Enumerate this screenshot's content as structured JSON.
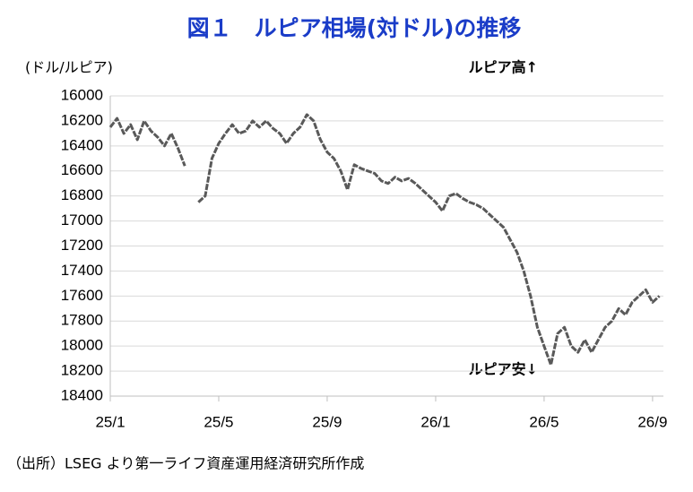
{
  "chart_data": {
    "type": "line",
    "title": "図１　ルピア相場(対ドル)の推移",
    "y_label": "(ドル/ルピア)",
    "annotations": [
      "ルピア高↑",
      "ルピア安↓"
    ],
    "source": "（出所）LSEG より第一ライフ資産運用経済研究所作成",
    "x": [
      0,
      0.25,
      0.5,
      0.75,
      1,
      1.25,
      1.5,
      1.75,
      2,
      2.25,
      2.5,
      2.75,
      3,
      3.25,
      3.5,
      3.75,
      4,
      4.25,
      4.5,
      4.75,
      5,
      5.25,
      5.5,
      5.75,
      6,
      6.25,
      6.5,
      6.75,
      7,
      7.25,
      7.5,
      7.75,
      8,
      8.25,
      8.5,
      8.75,
      9,
      9.25,
      9.5,
      9.75,
      10,
      10.25,
      10.5,
      10.75,
      11,
      11.25,
      11.5,
      11.75,
      12,
      12.25,
      12.5,
      12.75,
      13,
      13.25,
      13.5,
      13.75,
      14,
      14.25,
      14.5,
      14.75,
      15,
      15.25,
      15.5,
      15.75,
      16,
      16.25,
      16.5,
      16.75,
      17,
      17.25,
      17.5,
      17.75,
      18,
      18.25,
      18.5,
      18.75,
      19,
      19.25,
      19.5,
      19.75,
      20,
      20.25
    ],
    "series": [
      {
        "name": "ルピア相場",
        "color": "#595959",
        "values": [
          16250,
          16180,
          16300,
          16230,
          16350,
          16200,
          16280,
          16330,
          16400,
          16300,
          16420,
          16560,
          null,
          16850,
          16800,
          16500,
          16380,
          16300,
          16230,
          16300,
          16280,
          16200,
          16250,
          16200,
          16260,
          16300,
          16380,
          16300,
          16250,
          16150,
          16200,
          16350,
          16450,
          16500,
          16600,
          16750,
          16550,
          16580,
          16600,
          16620,
          16680,
          16700,
          16650,
          16680,
          16660,
          16700,
          16750,
          16800,
          16850,
          16920,
          16800,
          16780,
          16820,
          16850,
          16870,
          16900,
          16950,
          17000,
          17050,
          17150,
          17250,
          17400,
          17600,
          17850,
          18000,
          18150,
          17900,
          17850,
          18000,
          18050,
          17950,
          18050,
          17950,
          17850,
          17800,
          17700,
          17750,
          17650,
          17600,
          17550,
          17650,
          17600
        ]
      }
    ],
    "xlim": [
      0,
      20.4
    ],
    "xticks": [
      {
        "value": 0,
        "label": "25/1"
      },
      {
        "value": 4,
        "label": "25/5"
      },
      {
        "value": 8,
        "label": "25/9"
      },
      {
        "value": 12,
        "label": "26/1"
      },
      {
        "value": 16,
        "label": "26/5"
      },
      {
        "value": 20,
        "label": "26/9"
      }
    ],
    "ylim": [
      16000,
      18400
    ],
    "yticks": [
      16000,
      16200,
      16400,
      16600,
      16800,
      17000,
      17200,
      17400,
      17600,
      17800,
      18000,
      18200,
      18400
    ],
    "y_inverted": true,
    "grid": true
  }
}
